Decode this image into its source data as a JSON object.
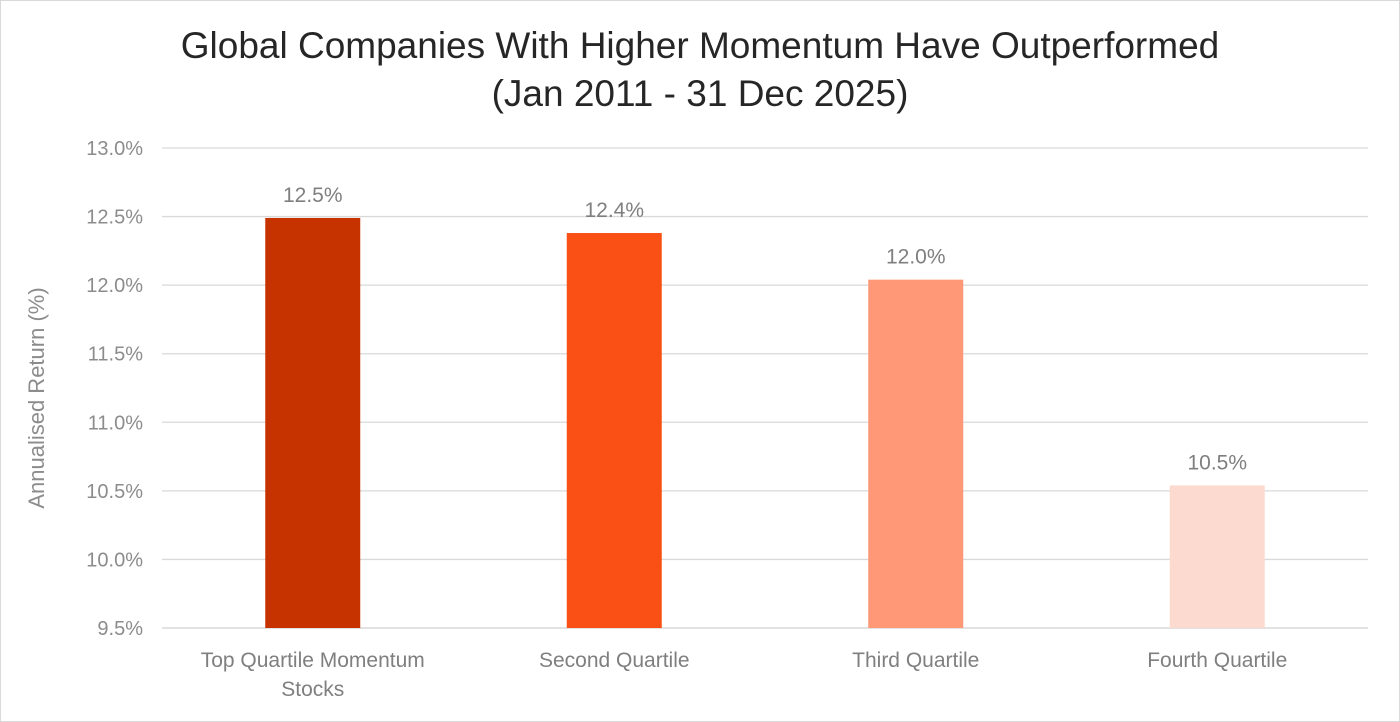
{
  "chart_data": {
    "type": "bar",
    "title": [
      "Global Companies With Higher Momentum Have Outperformed",
      "(Jan 2011 - 31 Dec 2025)"
    ],
    "xlabel": "",
    "ylabel": "Annualised Return (%)",
    "ylim": [
      9.5,
      13.0
    ],
    "ytick_step": 0.5,
    "ytick_labels": [
      "9.5%",
      "10.0%",
      "10.5%",
      "11.0%",
      "11.5%",
      "12.0%",
      "12.5%",
      "13.0%"
    ],
    "categories": [
      [
        "Top Quartile Momentum",
        "Stocks"
      ],
      [
        "Second Quartile"
      ],
      [
        "Third Quartile"
      ],
      [
        "Fourth Quartile"
      ]
    ],
    "values": [
      12.49,
      12.38,
      12.04,
      10.54
    ],
    "data_labels": [
      "12.5%",
      "12.4%",
      "12.0%",
      "10.5%"
    ],
    "colors": [
      "#c73300",
      "#fa4f15",
      "#fe9877",
      "#fddad0"
    ],
    "grid": true,
    "legend": "none"
  }
}
